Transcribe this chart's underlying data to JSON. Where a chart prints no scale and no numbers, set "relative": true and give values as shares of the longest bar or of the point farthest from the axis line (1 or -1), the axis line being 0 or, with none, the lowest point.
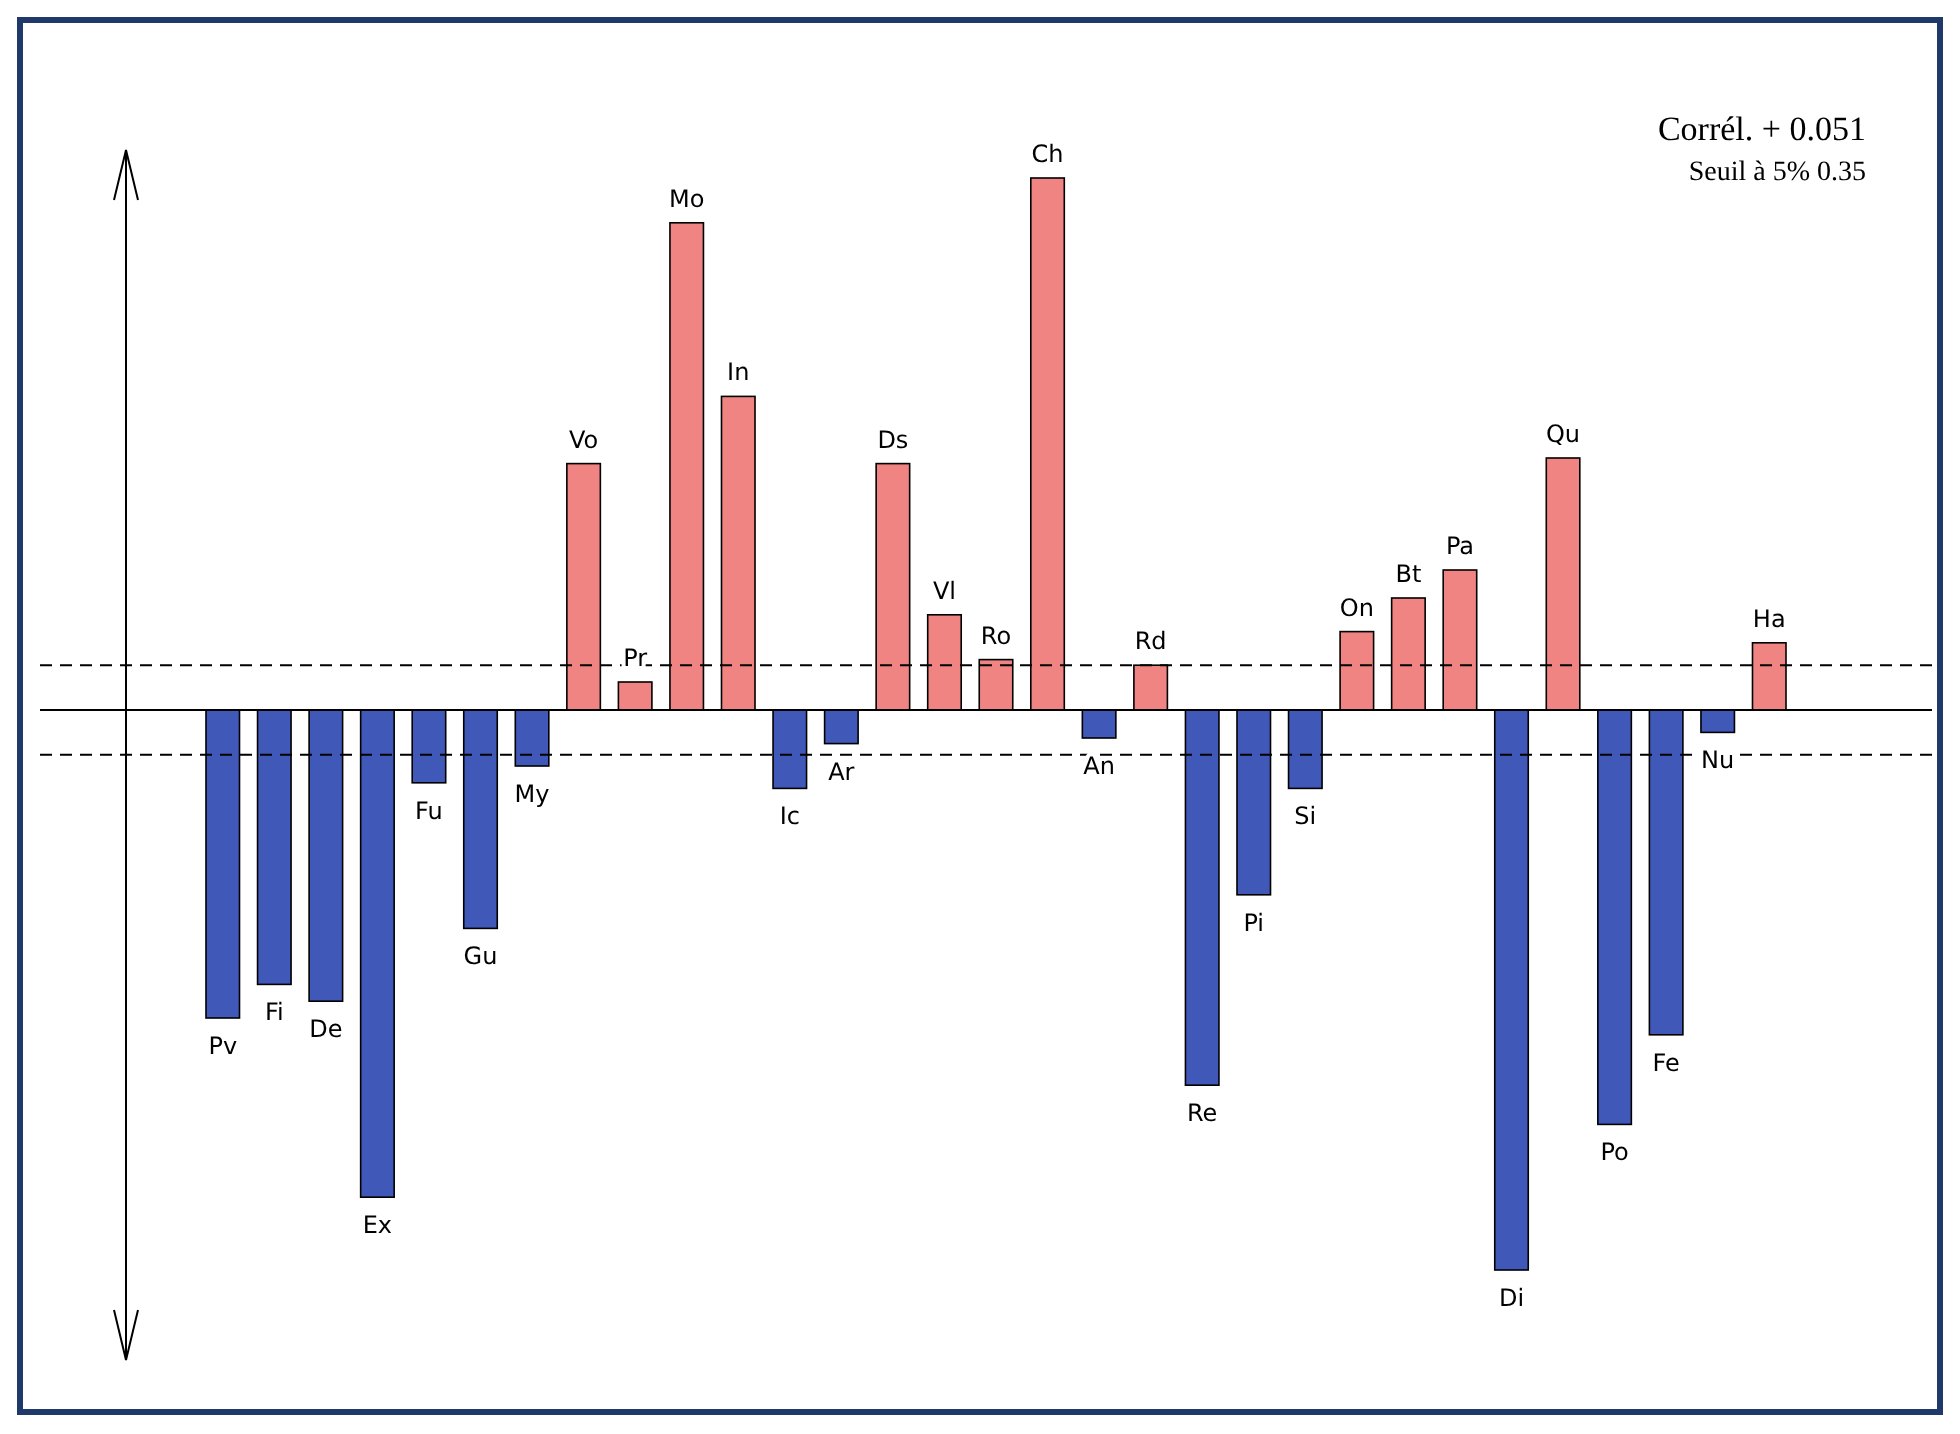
{
  "chart_data": {
    "type": "bar",
    "relative": true,
    "categories": [
      "Pv",
      "Fi",
      "De",
      "Ex",
      "Fu",
      "Gu",
      "My",
      "Vo",
      "Pr",
      "Mo",
      "In",
      "Ic",
      "Ar",
      "Ds",
      "Vl",
      "Ro",
      "Ch",
      "An",
      "Rd",
      "Re",
      "Pi",
      "Si",
      "On",
      "Bt",
      "Pa",
      "Di",
      "Qu",
      "Po",
      "Fe",
      "Nu",
      "Ha"
    ],
    "values": [
      -0.55,
      -0.49,
      -0.52,
      -0.87,
      -0.13,
      -0.39,
      -0.1,
      0.44,
      0.05,
      0.87,
      0.56,
      -0.14,
      -0.06,
      0.44,
      0.17,
      0.09,
      0.95,
      -0.05,
      0.08,
      -0.67,
      -0.33,
      -0.14,
      0.14,
      0.2,
      0.25,
      -1,
      0.45,
      -0.74,
      -0.58,
      -0.04,
      0.12
    ],
    "colors": [
      "#4058b8",
      "#4058b8",
      "#4058b8",
      "#4058b8",
      "#4058b8",
      "#4058b8",
      "#4058b8",
      "#f08482",
      "#f08482",
      "#f08482",
      "#f08482",
      "#4058b8",
      "#4058b8",
      "#f08482",
      "#f08482",
      "#f08482",
      "#f08482",
      "#4058b8",
      "#f08482",
      "#4058b8",
      "#4058b8",
      "#4058b8",
      "#f08482",
      "#f08482",
      "#f08482",
      "#4058b8",
      "#f08482",
      "#4058b8",
      "#4058b8",
      "#4058b8",
      "#f08482"
    ],
    "ref_lines": [
      {
        "axis": "y",
        "value": 0.08,
        "line_style": "dashed"
      },
      {
        "axis": "y",
        "value": -0.08,
        "line_style": "dashed"
      }
    ],
    "annotations": [
      "Corrél. + 0.051",
      "Seuil à 5%  0.35"
    ]
  }
}
